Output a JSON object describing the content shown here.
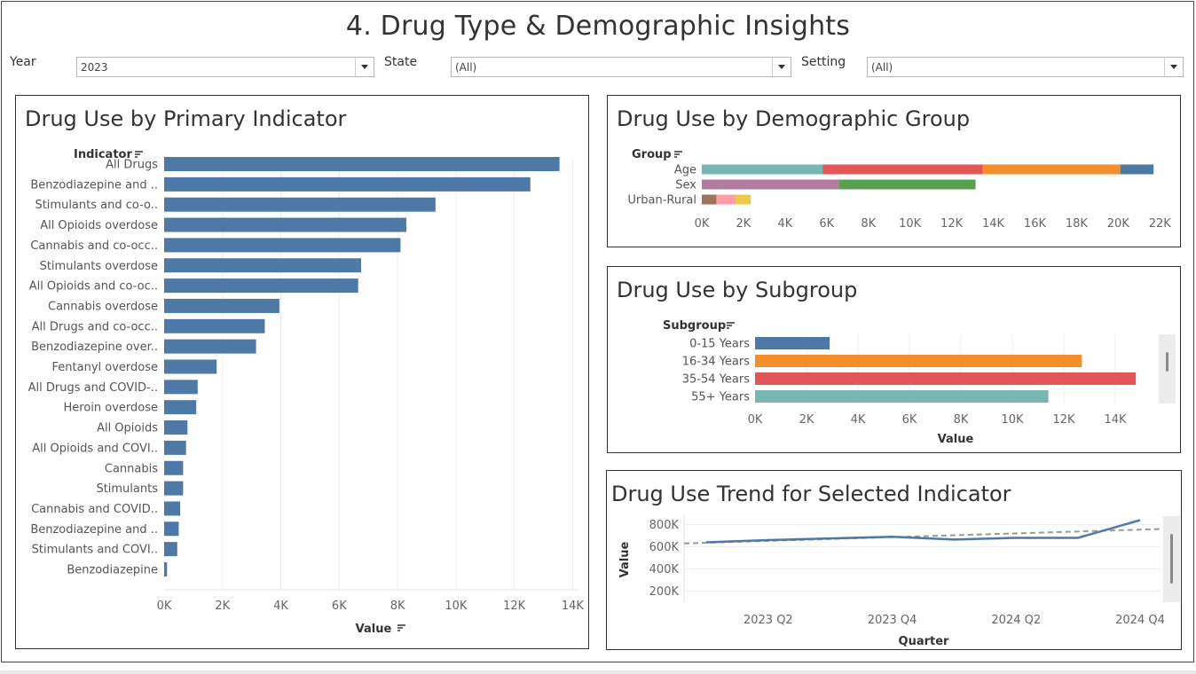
{
  "dashboard_title": "4. Drug Type & Demographic Insights",
  "filters": {
    "year": {
      "label": "Year",
      "value": "2023"
    },
    "state": {
      "label": "State",
      "value": "(All)"
    },
    "setting": {
      "label": "Setting",
      "value": "(All)"
    }
  },
  "colors": {
    "bar_blue": "#4e79a7",
    "teal": "#76b7b2",
    "red": "#e15759",
    "orange": "#f28e2b",
    "purple": "#b07aa1",
    "green": "#59a14f",
    "brown": "#9c755f",
    "pink": "#ff9da7",
    "yellow": "#edc948",
    "gray_dash": "#999999"
  },
  "icons": {
    "sort": "sort-descending-icon",
    "dropdown": "chevron-down-icon"
  },
  "chart_data": [
    {
      "type": "bar",
      "orientation": "horizontal",
      "title": "Drug Use by Primary Indicator",
      "row_header": "Indicator",
      "xlabel": "Value",
      "xlim": [
        0,
        14200
      ],
      "ticks": [
        0,
        2000,
        4000,
        6000,
        8000,
        10000,
        12000,
        14000
      ],
      "tick_labels": [
        "0K",
        "2K",
        "4K",
        "6K",
        "8K",
        "10K",
        "12K",
        "14K"
      ],
      "categories": [
        "All Drugs",
        "Benzodiazepine and ..",
        "Stimulants and co-o..",
        "All Opioids overdose",
        "Cannabis and co-occ..",
        "Stimulants overdose",
        "All Opioids and co-oc..",
        "Cannabis overdose",
        "All Drugs and co-occ..",
        "Benzodiazepine over..",
        "Fentanyl overdose",
        "All Drugs and COVID-..",
        "Heroin overdose",
        "All Opioids",
        "All Opioids and COVI..",
        "Cannabis",
        "Stimulants",
        "Cannabis and COVID..",
        "Benzodiazepine and ..",
        "Stimulants and COVI..",
        "Benzodiazepine"
      ],
      "values": [
        13550,
        12550,
        9300,
        8300,
        8100,
        6750,
        6650,
        3950,
        3450,
        3150,
        1800,
        1150,
        1100,
        800,
        750,
        650,
        650,
        550,
        500,
        450,
        100
      ]
    },
    {
      "type": "bar",
      "orientation": "horizontal",
      "stacked": true,
      "title": "Drug Use by Demographic Group",
      "row_header": "Group",
      "xlim": [
        0,
        22500
      ],
      "ticks": [
        0,
        2000,
        4000,
        6000,
        8000,
        10000,
        12000,
        14000,
        16000,
        18000,
        20000,
        22000
      ],
      "tick_labels": [
        "0K",
        "2K",
        "4K",
        "6K",
        "8K",
        "10K",
        "12K",
        "14K",
        "16K",
        "18K",
        "20K",
        "22K"
      ],
      "categories": [
        "Age",
        "Sex",
        "Urban-Rural"
      ],
      "segments": [
        [
          {
            "value": 5800,
            "color": "#76b7b2"
          },
          {
            "value": 7700,
            "color": "#e15759"
          },
          {
            "value": 6600,
            "color": "#f28e2b"
          },
          {
            "value": 1600,
            "color": "#4e79a7"
          }
        ],
        [
          {
            "value": 6600,
            "color": "#b07aa1"
          },
          {
            "value": 6550,
            "color": "#59a14f"
          }
        ],
        [
          {
            "value": 700,
            "color": "#9c755f"
          },
          {
            "value": 950,
            "color": "#ff9da7"
          },
          {
            "value": 700,
            "color": "#edc948"
          }
        ]
      ]
    },
    {
      "type": "bar",
      "orientation": "horizontal",
      "title": "Drug Use by Subgroup",
      "row_header": "Subgroup",
      "xlabel": "Value",
      "xlim": [
        0,
        16000
      ],
      "ticks": [
        0,
        2000,
        4000,
        6000,
        8000,
        10000,
        12000,
        14000
      ],
      "tick_labels": [
        "0K",
        "2K",
        "4K",
        "6K",
        "8K",
        "10K",
        "12K",
        "14K"
      ],
      "categories": [
        "0-15 Years",
        "16-34 Years",
        "35-54 Years",
        "55+ Years"
      ],
      "values": [
        2900,
        12700,
        14800,
        11400
      ],
      "colors": [
        "#4e79a7",
        "#f28e2b",
        "#e15759",
        "#76b7b2"
      ]
    },
    {
      "type": "line",
      "title": "Drug Use Trend for Selected Indicator",
      "xlabel": "Quarter",
      "ylabel": "Value",
      "x": [
        "2023 Q1",
        "2023 Q2",
        "2023 Q3",
        "2023 Q4",
        "2024 Q1",
        "2024 Q2",
        "2024 Q3",
        "2024 Q4"
      ],
      "x_tick_labels": [
        "2023 Q2",
        "2023 Q4",
        "2024 Q2",
        "2024 Q4"
      ],
      "y": [
        640000,
        660000,
        675000,
        690000,
        665000,
        680000,
        680000,
        840000
      ],
      "trend_line": {
        "start": 630000,
        "end": 760000,
        "style": "dashed"
      },
      "ylim": [
        100000,
        900000
      ],
      "y_ticks": [
        200000,
        400000,
        600000,
        800000
      ],
      "y_tick_labels": [
        "200K",
        "400K",
        "600K",
        "800K"
      ]
    }
  ]
}
